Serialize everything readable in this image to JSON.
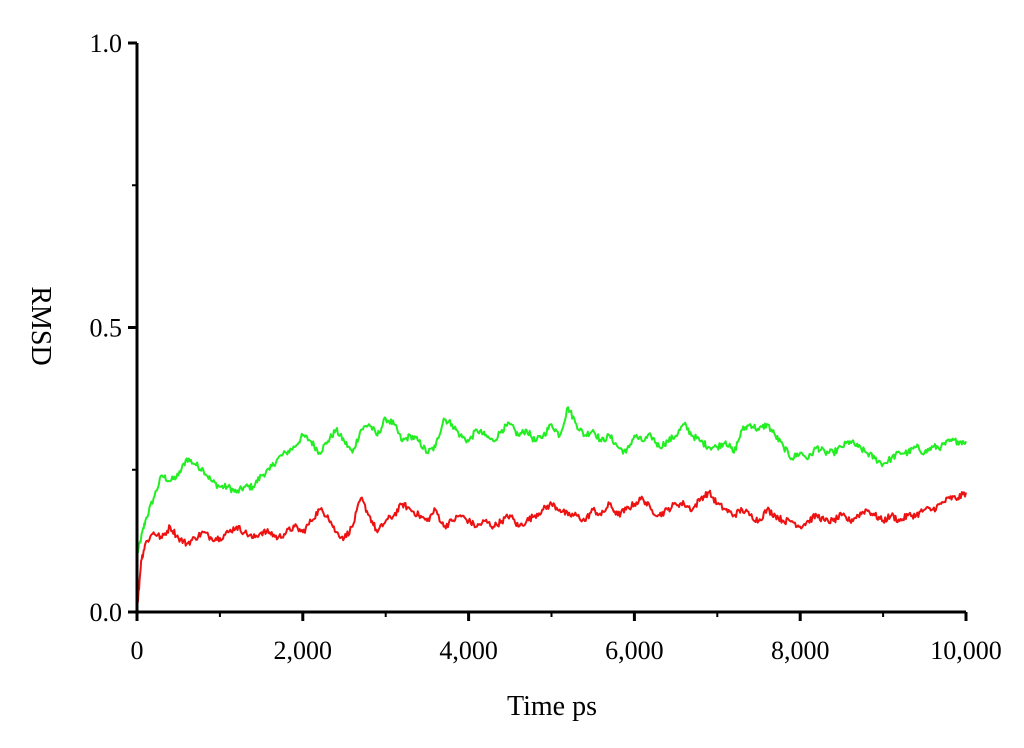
{
  "chart_data": {
    "type": "line",
    "title": "",
    "xlabel": "Time ps",
    "ylabel": "RMSD",
    "xlim": [
      0,
      10000
    ],
    "ylim": [
      0,
      1.0
    ],
    "xticks": [
      0,
      2000,
      4000,
      6000,
      8000,
      10000
    ],
    "xtick_labels": [
      "0",
      "2,000",
      "4,000",
      "6,000",
      "8,000",
      "10,000"
    ],
    "yticks": [
      0.0,
      0.5,
      1.0
    ],
    "ytick_labels": [
      "0.0",
      "0.5",
      "1.0"
    ],
    "grid": false,
    "legend": "none",
    "series": [
      {
        "color": "#22ee22",
        "x": [
          0,
          50,
          100,
          200,
          300,
          400,
          500,
          600,
          700,
          800,
          900,
          1000,
          1100,
          1200,
          1300,
          1400,
          1500,
          1600,
          1700,
          1800,
          1900,
          2000,
          2100,
          2200,
          2300,
          2400,
          2500,
          2600,
          2700,
          2800,
          2900,
          3000,
          3100,
          3200,
          3300,
          3400,
          3500,
          3600,
          3700,
          3800,
          3900,
          4000,
          4100,
          4200,
          4300,
          4400,
          4500,
          4600,
          4700,
          4800,
          4900,
          5000,
          5100,
          5200,
          5300,
          5400,
          5500,
          5600,
          5700,
          5800,
          5900,
          6000,
          6100,
          6200,
          6300,
          6400,
          6500,
          6600,
          6700,
          6800,
          6900,
          7000,
          7100,
          7200,
          7300,
          7400,
          7500,
          7600,
          7700,
          7800,
          7900,
          8000,
          8100,
          8200,
          8300,
          8400,
          8500,
          8600,
          8700,
          8800,
          8900,
          9000,
          9100,
          9200,
          9300,
          9400,
          9500,
          9600,
          9700,
          9800,
          9900,
          10000
        ],
        "y": [
          0.1,
          0.13,
          0.16,
          0.2,
          0.24,
          0.23,
          0.24,
          0.27,
          0.26,
          0.25,
          0.23,
          0.22,
          0.22,
          0.21,
          0.22,
          0.22,
          0.24,
          0.25,
          0.27,
          0.28,
          0.29,
          0.31,
          0.3,
          0.28,
          0.3,
          0.32,
          0.3,
          0.28,
          0.32,
          0.33,
          0.31,
          0.34,
          0.33,
          0.3,
          0.31,
          0.3,
          0.28,
          0.29,
          0.34,
          0.33,
          0.31,
          0.3,
          0.32,
          0.31,
          0.3,
          0.32,
          0.33,
          0.31,
          0.32,
          0.3,
          0.31,
          0.33,
          0.31,
          0.36,
          0.33,
          0.31,
          0.32,
          0.3,
          0.31,
          0.29,
          0.28,
          0.31,
          0.3,
          0.31,
          0.29,
          0.3,
          0.31,
          0.33,
          0.31,
          0.3,
          0.29,
          0.29,
          0.3,
          0.28,
          0.32,
          0.33,
          0.32,
          0.33,
          0.31,
          0.29,
          0.27,
          0.28,
          0.27,
          0.29,
          0.28,
          0.28,
          0.29,
          0.3,
          0.29,
          0.28,
          0.27,
          0.26,
          0.27,
          0.28,
          0.28,
          0.29,
          0.28,
          0.29,
          0.29,
          0.3,
          0.3,
          0.3
        ]
      },
      {
        "color": "#ee1111",
        "x": [
          0,
          50,
          100,
          200,
          300,
          400,
          500,
          600,
          700,
          800,
          900,
          1000,
          1100,
          1200,
          1300,
          1400,
          1500,
          1600,
          1700,
          1800,
          1900,
          2000,
          2100,
          2200,
          2300,
          2400,
          2500,
          2600,
          2700,
          2800,
          2900,
          3000,
          3100,
          3200,
          3300,
          3400,
          3500,
          3600,
          3700,
          3800,
          3900,
          4000,
          4100,
          4200,
          4300,
          4400,
          4500,
          4600,
          4700,
          4800,
          4900,
          5000,
          5100,
          5200,
          5300,
          5400,
          5500,
          5600,
          5700,
          5800,
          5900,
          6000,
          6100,
          6200,
          6300,
          6400,
          6500,
          6600,
          6700,
          6800,
          6900,
          7000,
          7100,
          7200,
          7300,
          7400,
          7500,
          7600,
          7700,
          7800,
          7900,
          8000,
          8100,
          8200,
          8300,
          8400,
          8500,
          8600,
          8700,
          8800,
          8900,
          9000,
          9100,
          9200,
          9300,
          9400,
          9500,
          9600,
          9700,
          9800,
          9900,
          10000
        ],
        "y": [
          0.0,
          0.09,
          0.12,
          0.14,
          0.13,
          0.15,
          0.13,
          0.12,
          0.13,
          0.14,
          0.13,
          0.13,
          0.14,
          0.15,
          0.14,
          0.13,
          0.14,
          0.14,
          0.13,
          0.14,
          0.15,
          0.14,
          0.16,
          0.18,
          0.17,
          0.14,
          0.13,
          0.15,
          0.2,
          0.17,
          0.14,
          0.16,
          0.17,
          0.19,
          0.18,
          0.17,
          0.16,
          0.18,
          0.15,
          0.16,
          0.17,
          0.16,
          0.15,
          0.16,
          0.15,
          0.16,
          0.17,
          0.15,
          0.16,
          0.17,
          0.18,
          0.19,
          0.18,
          0.17,
          0.17,
          0.16,
          0.18,
          0.17,
          0.19,
          0.17,
          0.18,
          0.19,
          0.2,
          0.18,
          0.17,
          0.18,
          0.19,
          0.19,
          0.18,
          0.2,
          0.21,
          0.19,
          0.18,
          0.17,
          0.18,
          0.17,
          0.16,
          0.18,
          0.17,
          0.16,
          0.16,
          0.15,
          0.16,
          0.17,
          0.16,
          0.16,
          0.17,
          0.16,
          0.17,
          0.18,
          0.17,
          0.16,
          0.17,
          0.16,
          0.17,
          0.17,
          0.18,
          0.18,
          0.19,
          0.2,
          0.2,
          0.21
        ]
      }
    ]
  }
}
